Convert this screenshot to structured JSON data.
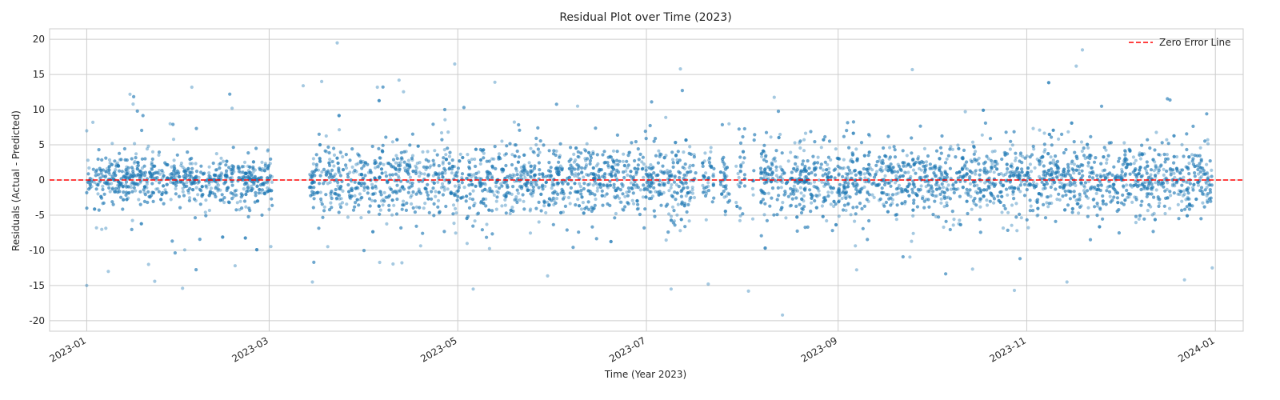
{
  "chart_data": {
    "type": "scatter",
    "title": "Residual Plot over Time (2023)",
    "xlabel": "Time (Year 2023)",
    "ylabel": "Residuals (Actual - Predicted)",
    "x_range": [
      "2022-12-20",
      "2024-01-10"
    ],
    "ylim": [
      -21.5,
      21.5
    ],
    "x_ticks": [
      "2023-01",
      "2023-03",
      "2023-05",
      "2023-07",
      "2023-09",
      "2023-11",
      "2024-01"
    ],
    "y_ticks": [
      -20,
      -15,
      -10,
      -5,
      0,
      5,
      10,
      15,
      20
    ],
    "grid": true,
    "legend": {
      "placement": "top-right",
      "entries": [
        "Zero Error Line"
      ]
    },
    "reference_line": {
      "name": "Zero Error Line",
      "y": 0,
      "style": "dashed",
      "color": "#ff0000"
    },
    "point_color": "#1f77b4",
    "point_opacity": 0.4,
    "data_gaps": [
      {
        "start": "2023-03-02",
        "end": "2023-03-14"
      },
      {
        "start": "2023-07-17",
        "end": "2023-07-19"
      },
      {
        "start": "2023-07-23",
        "end": "2023-07-25"
      },
      {
        "start": "2023-07-28",
        "end": "2023-07-30"
      },
      {
        "start": "2023-08-02",
        "end": "2023-08-04"
      },
      {
        "start": "2023-08-05",
        "end": "2023-08-07"
      }
    ],
    "series": [
      {
        "values": [
          {
            "x": "2023-01-01",
            "y": -15.0
          },
          {
            "x": "2023-01-01",
            "y": 7.0
          },
          {
            "x": "2023-01-03",
            "y": 8.2
          },
          {
            "x": "2023-01-08",
            "y": -13.0
          },
          {
            "x": "2023-01-15",
            "y": 12.2
          },
          {
            "x": "2023-01-16",
            "y": 10.8
          },
          {
            "x": "2023-01-21",
            "y": -12.0
          },
          {
            "x": "2023-01-23",
            "y": -14.4
          },
          {
            "x": "2023-01-28",
            "y": 8.0
          },
          {
            "x": "2023-02-01",
            "y": -15.4
          },
          {
            "x": "2023-02-04",
            "y": 13.2
          },
          {
            "x": "2023-02-17",
            "y": 10.2
          },
          {
            "x": "2023-02-18",
            "y": -12.2
          },
          {
            "x": "2023-03-12",
            "y": 13.4
          },
          {
            "x": "2023-03-15",
            "y": -14.5
          },
          {
            "x": "2023-03-18",
            "y": 14.0
          },
          {
            "x": "2023-03-23",
            "y": 19.5
          },
          {
            "x": "2023-04-05",
            "y": 13.2
          },
          {
            "x": "2023-04-12",
            "y": 14.2
          },
          {
            "x": "2023-04-30",
            "y": 16.5
          },
          {
            "x": "2023-05-06",
            "y": -15.5
          },
          {
            "x": "2023-05-13",
            "y": 13.9
          },
          {
            "x": "2023-07-09",
            "y": -15.5
          },
          {
            "x": "2023-07-12",
            "y": 15.8
          },
          {
            "x": "2023-07-21",
            "y": -14.8
          },
          {
            "x": "2023-08-03",
            "y": -15.8
          },
          {
            "x": "2023-08-14",
            "y": -19.2
          },
          {
            "x": "2023-09-25",
            "y": 15.7
          },
          {
            "x": "2023-10-28",
            "y": -15.7
          },
          {
            "x": "2023-11-14",
            "y": -14.5
          },
          {
            "x": "2023-11-17",
            "y": 16.2
          },
          {
            "x": "2023-11-19",
            "y": 18.5
          },
          {
            "x": "2023-12-22",
            "y": -14.2
          },
          {
            "x": "2023-12-31",
            "y": -12.5
          }
        ],
        "note_values": "plus ~9000 dense points, |y| mostly < 5"
      }
    ]
  }
}
